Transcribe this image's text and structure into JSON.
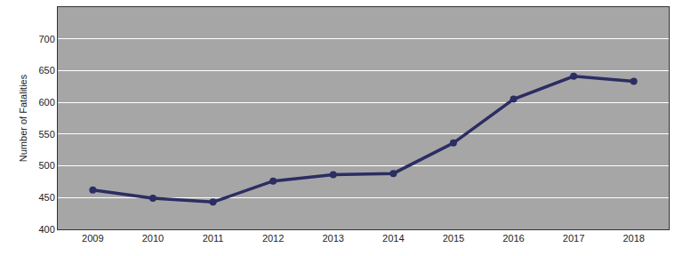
{
  "chart_data": {
    "type": "line",
    "y_label": "Number of Fatalities",
    "categories": [
      "2009",
      "2010",
      "2011",
      "2012",
      "2013",
      "2014",
      "2015",
      "2016",
      "2017",
      "2018"
    ],
    "values": [
      462,
      449,
      443,
      476,
      486,
      488,
      536,
      605,
      641,
      633
    ],
    "color": "#2b2d63",
    "marker": "circle",
    "ylim": [
      400,
      750
    ],
    "yticks": [
      400,
      450,
      500,
      550,
      600,
      650,
      700
    ],
    "grid": true
  }
}
